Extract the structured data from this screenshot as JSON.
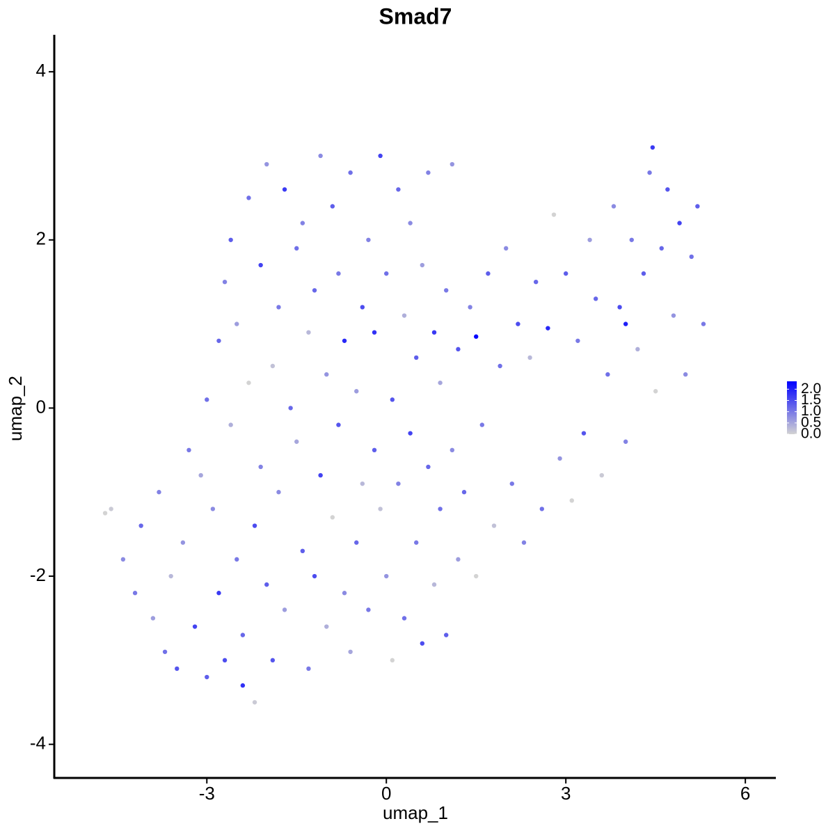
{
  "chart_data": {
    "type": "scatter",
    "title": "Smad7",
    "x_label": "umap_1",
    "y_label": "umap_2",
    "xlim": [
      -5.55,
      6.51
    ],
    "ylim": [
      -4.4,
      4.44
    ],
    "xticks": [
      -3,
      0,
      3,
      6
    ],
    "yticks": [
      -4,
      -2,
      0,
      2,
      4
    ],
    "color_low": "#d3d3d3",
    "color_high": "#0000ff",
    "color_range": [
      0,
      2.35
    ],
    "colorbar_ticks": [
      {
        "value": 2.0,
        "label": "2.0"
      },
      {
        "value": 1.5,
        "label": "1.5"
      },
      {
        "value": 1.0,
        "label": "1.0"
      },
      {
        "value": 0.5,
        "label": "0.5"
      },
      {
        "value": 0.0,
        "label": "0.0"
      }
    ],
    "x": [
      -4.7,
      -4.6,
      -4.4,
      -4.2,
      -4.1,
      -3.9,
      -3.8,
      -3.7,
      -3.6,
      -3.5,
      -3.4,
      -3.3,
      -3.2,
      -3.1,
      -3.0,
      -3.0,
      -2.9,
      -2.8,
      -2.8,
      -2.7,
      -2.7,
      -2.6,
      -2.6,
      -2.5,
      -2.5,
      -2.4,
      -2.4,
      -2.3,
      -2.3,
      -2.2,
      -2.2,
      -2.1,
      -2.1,
      -2.0,
      -2.0,
      -1.9,
      -1.9,
      -1.8,
      -1.8,
      -1.7,
      -1.7,
      -1.6,
      -1.5,
      -1.5,
      -1.4,
      -1.4,
      -1.3,
      -1.3,
      -1.2,
      -1.2,
      -1.1,
      -1.1,
      -1.0,
      -1.0,
      -0.9,
      -0.9,
      -0.8,
      -0.8,
      -0.7,
      -0.7,
      -0.6,
      -0.6,
      -0.5,
      -0.5,
      -0.4,
      -0.4,
      -0.3,
      -0.3,
      -0.2,
      -0.2,
      -0.1,
      -0.1,
      0.0,
      0.0,
      0.1,
      0.1,
      0.2,
      0.2,
      0.3,
      0.3,
      0.4,
      0.4,
      0.5,
      0.5,
      0.6,
      0.6,
      0.7,
      0.7,
      0.8,
      0.8,
      0.9,
      0.9,
      1.0,
      1.0,
      1.1,
      1.1,
      1.2,
      1.2,
      1.3,
      1.4,
      1.5,
      1.5,
      1.6,
      1.7,
      1.8,
      1.9,
      2.0,
      2.1,
      2.2,
      2.3,
      2.4,
      2.5,
      2.6,
      2.7,
      2.8,
      2.9,
      3.0,
      3.1,
      3.2,
      3.3,
      3.4,
      3.5,
      3.6,
      3.7,
      3.8,
      3.9,
      4.0,
      4.0,
      4.1,
      4.2,
      4.3,
      4.4,
      4.45,
      4.5,
      4.6,
      4.7,
      4.8,
      4.9,
      5.0,
      5.1,
      5.2,
      5.3
    ],
    "y": [
      -1.25,
      -1.2,
      -1.8,
      -2.2,
      -1.4,
      -2.5,
      -1.0,
      -2.9,
      -2.0,
      -3.1,
      -1.6,
      -0.5,
      -2.6,
      -0.8,
      -3.2,
      0.1,
      -1.2,
      -2.2,
      0.8,
      1.5,
      -3.0,
      -0.2,
      2.0,
      -1.8,
      1.0,
      -2.7,
      -3.3,
      0.3,
      2.5,
      -1.4,
      -3.5,
      -0.7,
      1.7,
      2.9,
      -2.1,
      0.5,
      -3.0,
      1.2,
      -1.0,
      2.6,
      -2.4,
      0.0,
      -0.4,
      1.9,
      -1.7,
      2.2,
      -3.1,
      0.9,
      -2.0,
      1.4,
      3.0,
      -0.8,
      0.4,
      -2.6,
      2.4,
      -1.3,
      1.6,
      -0.2,
      -2.2,
      0.8,
      2.8,
      -2.9,
      -1.6,
      0.2,
      1.2,
      -0.9,
      2.0,
      -2.4,
      -0.5,
      0.9,
      3.0,
      -1.2,
      1.6,
      -2.0,
      0.1,
      -3.0,
      2.6,
      -0.9,
      1.1,
      -2.5,
      -0.3,
      2.2,
      0.6,
      -1.6,
      -2.8,
      1.7,
      -0.7,
      2.8,
      0.9,
      -2.1,
      -1.2,
      0.3,
      -2.7,
      1.4,
      2.9,
      -0.5,
      0.7,
      -1.8,
      -1.0,
      1.2,
      0.85,
      -2.0,
      -0.2,
      1.6,
      -1.4,
      0.5,
      1.9,
      -0.9,
      1.0,
      -1.6,
      0.6,
      1.5,
      -1.2,
      0.95,
      2.3,
      -0.6,
      1.6,
      -1.1,
      0.8,
      -0.3,
      2.0,
      1.3,
      -0.8,
      0.4,
      2.4,
      1.2,
      -0.4,
      1.0,
      2.0,
      0.7,
      1.6,
      2.8,
      3.1,
      0.2,
      1.9,
      2.6,
      1.1,
      2.2,
      0.4,
      1.8,
      2.4,
      1.0
    ],
    "values": [
      0,
      0.1,
      0.8,
      1.0,
      1.2,
      0.6,
      0.9,
      1.1,
      0.3,
      1.4,
      0.7,
      1.0,
      1.6,
      0.5,
      1.3,
      1.1,
      0.8,
      1.7,
      1.2,
      0.9,
      1.5,
      0.4,
      1.3,
      1.0,
      0.6,
      1.2,
      1.8,
      0,
      1.1,
      1.5,
      0.1,
      0.9,
      1.6,
      0.7,
      1.3,
      0.2,
      1.4,
      1.0,
      0.8,
      1.7,
      0.6,
      1.2,
      0.5,
      1.1,
      1.3,
      0.9,
      1.0,
      0.3,
      1.5,
      1.2,
      0.8,
      1.6,
      0.7,
      0.4,
      1.3,
      0,
      1.0,
      1.4,
      0.8,
      1.9,
      1.1,
      0.5,
      1.2,
      0.6,
      1.5,
      0.3,
      0.9,
      1.0,
      1.3,
      1.8,
      1.6,
      0.2,
      1.1,
      0.7,
      1.4,
      0,
      1.2,
      0.9,
      0.4,
      1.1,
      1.6,
      0.8,
      1.3,
      1.0,
      1.5,
      0.6,
      1.2,
      0.9,
      1.7,
      0.3,
      1.1,
      0.5,
      1.3,
      1.0,
      0.7,
      0.8,
      1.4,
      0.6,
      1.2,
      0.9,
      2.3,
      0,
      1.0,
      1.3,
      0.2,
      1.1,
      0.8,
      1.0,
      1.5,
      0.9,
      0.3,
      1.2,
      1.1,
      1.9,
      0,
      0.7,
      1.3,
      0,
      1.0,
      1.4,
      0.6,
      1.2,
      0.1,
      1.1,
      0.8,
      1.5,
      0.9,
      2.0,
      1.0,
      0.4,
      1.3,
      1.0,
      1.7,
      0,
      1.2,
      1.4,
      0.7,
      1.6,
      0.8,
      1.1,
      1.3,
      1.0
    ]
  }
}
